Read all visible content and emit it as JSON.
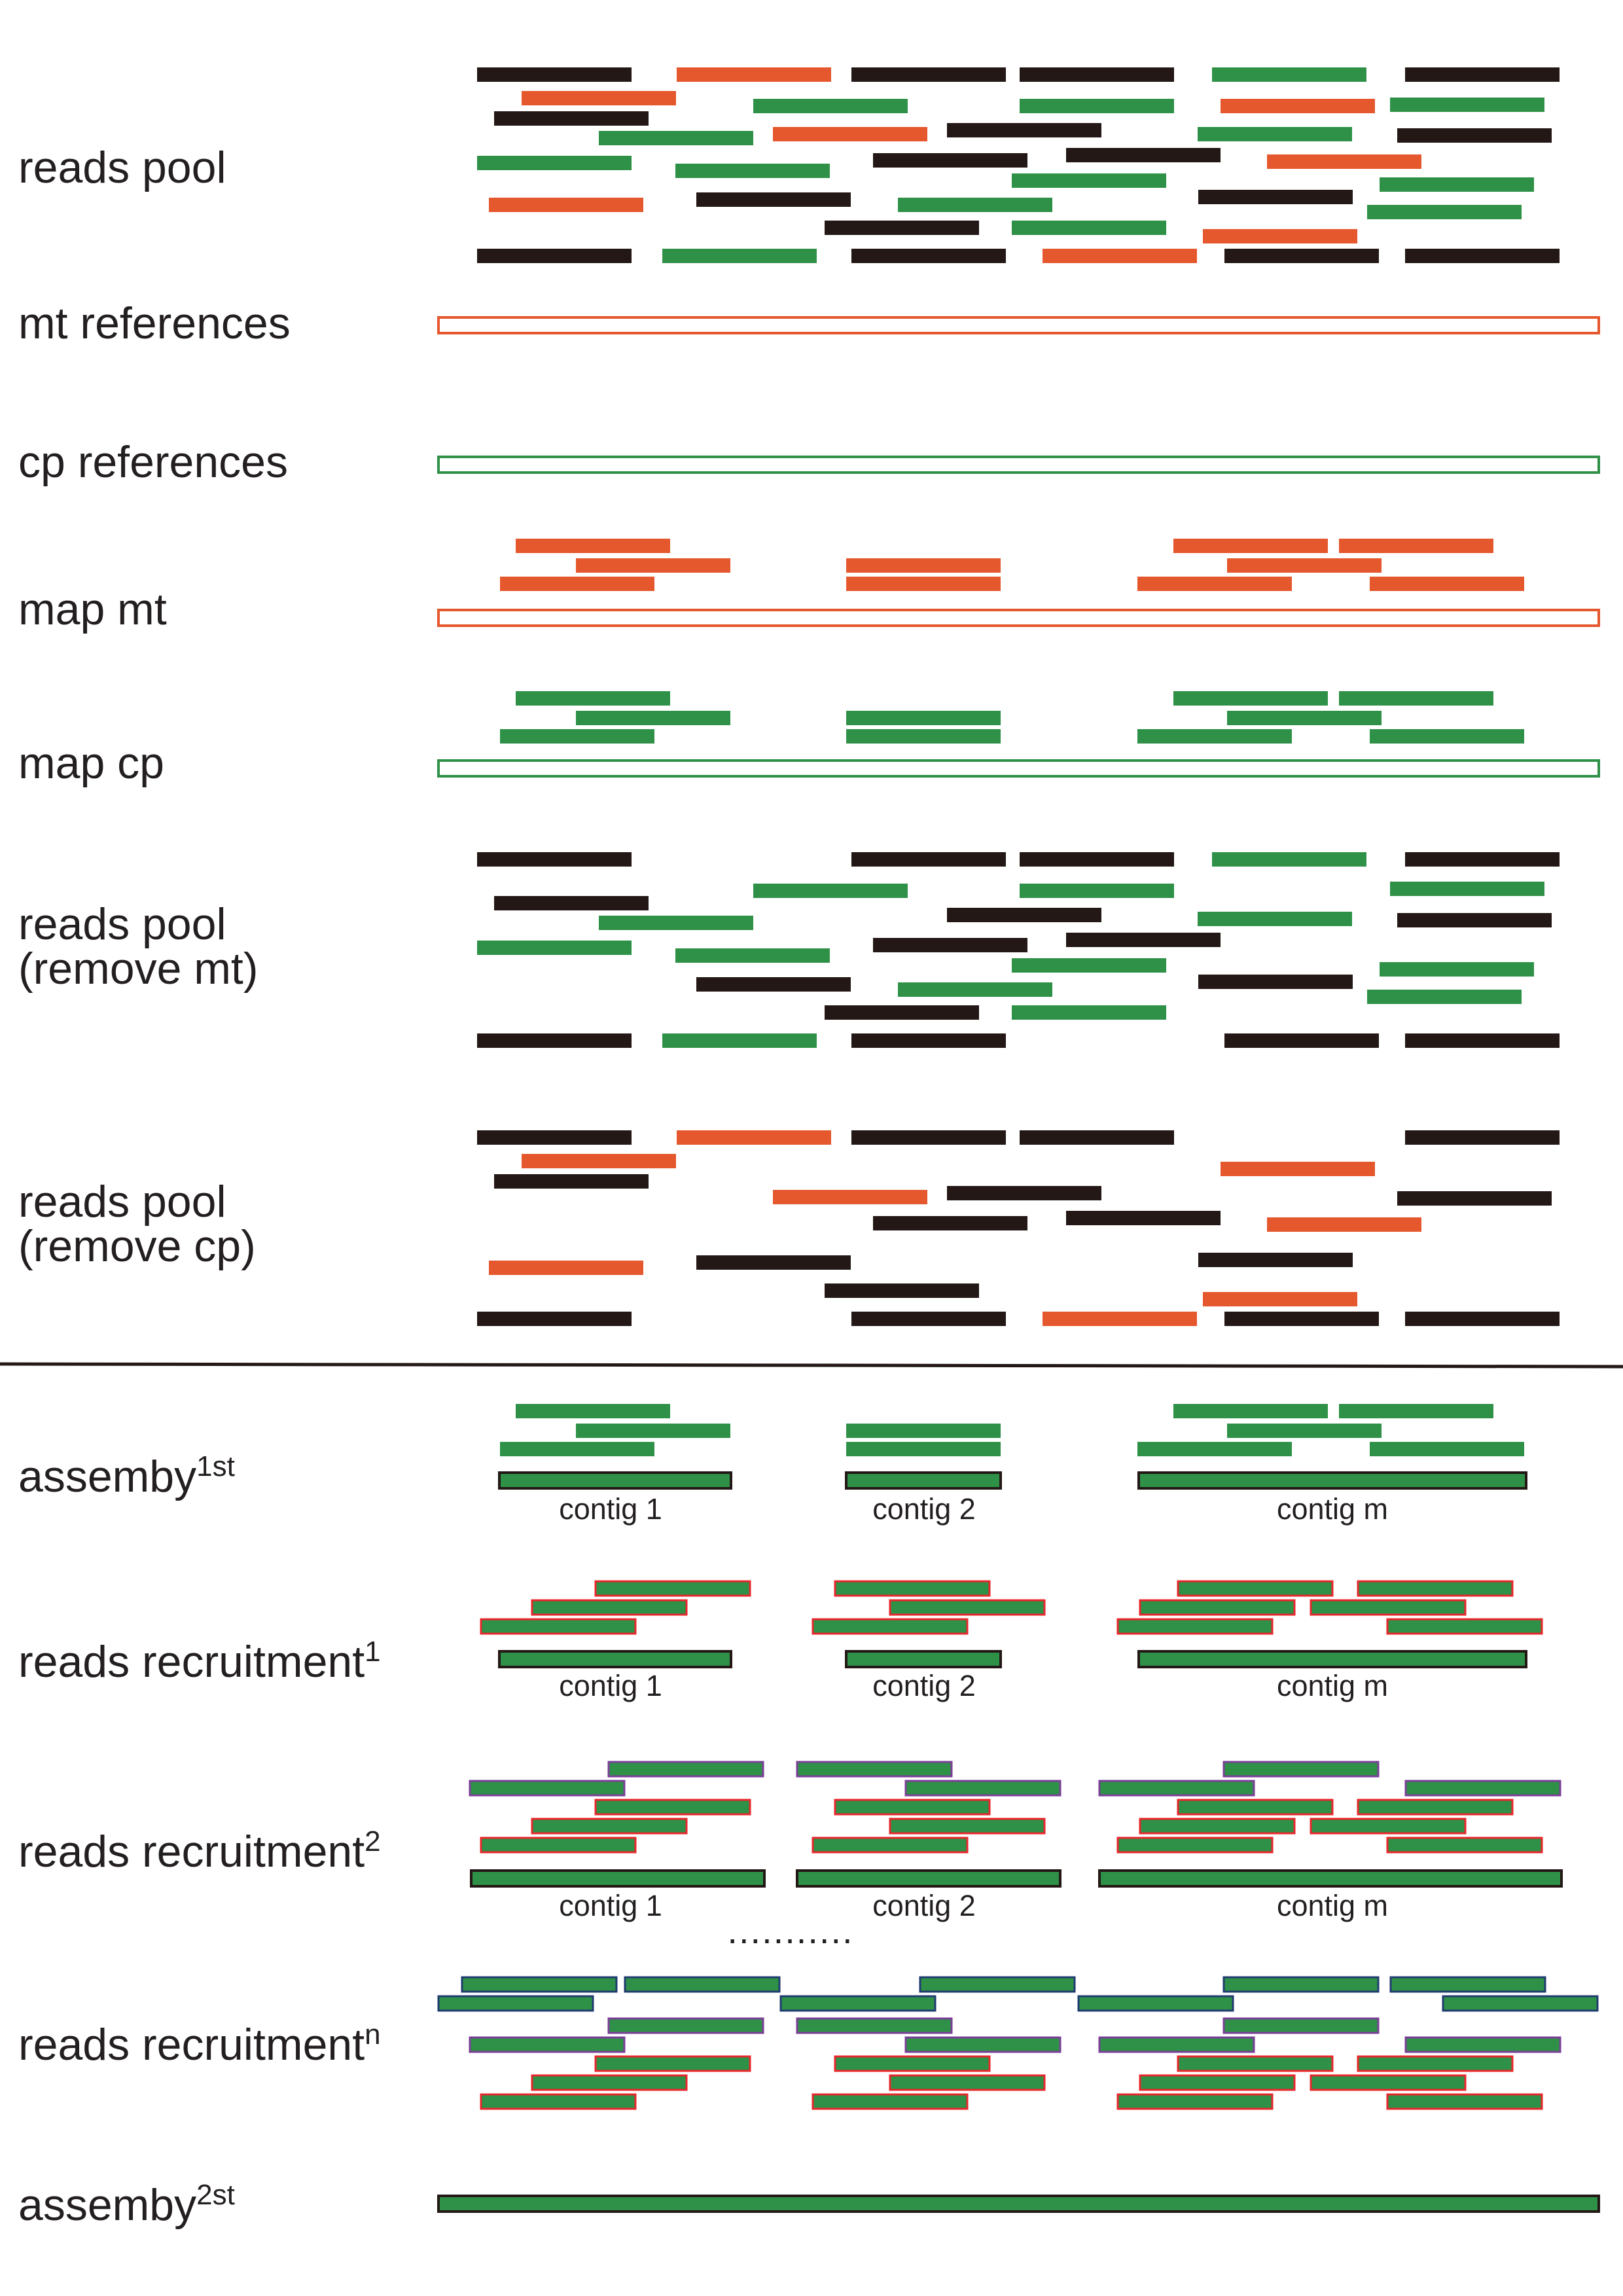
{
  "labels": {
    "reads_pool": "reads pool",
    "mt_references": "mt references",
    "cp_references": "cp references",
    "map_mt": "map mt",
    "map_cp": "map cp",
    "reads_pool_remove_mt": "reads pool\n(remove mt)",
    "reads_pool_remove_cp": "reads pool\n(remove cp)",
    "assembly_1st": {
      "text": "assemby",
      "sup": "1st"
    },
    "recruitment_1": {
      "text": "reads recruitment",
      "sup": "1"
    },
    "recruitment_2": {
      "text": "reads recruitment",
      "sup": "2"
    },
    "recruitment_n": {
      "text": "reads recruitment",
      "sup": "n"
    },
    "assembly_2nd": {
      "text": "assemby",
      "sup": "2st"
    }
  },
  "contig_labels": [
    "contig 1",
    "contig 2",
    "contig m"
  ],
  "ellipsis": "...........",
  "colors": {
    "black_read": "#231815",
    "mt_read": "#e5572d",
    "cp_read": "#2f9148",
    "mt_reference": "#e5572d",
    "cp_reference": "#2f9148",
    "contig_fill": "#2f9148",
    "contig_stroke": "#231815",
    "recruit_round1_stroke": "#e8262b",
    "recruit_round2_stroke": "#7b3f98",
    "recruit_roundn_stroke": "#1f3b70",
    "divider": "#231815"
  }
}
